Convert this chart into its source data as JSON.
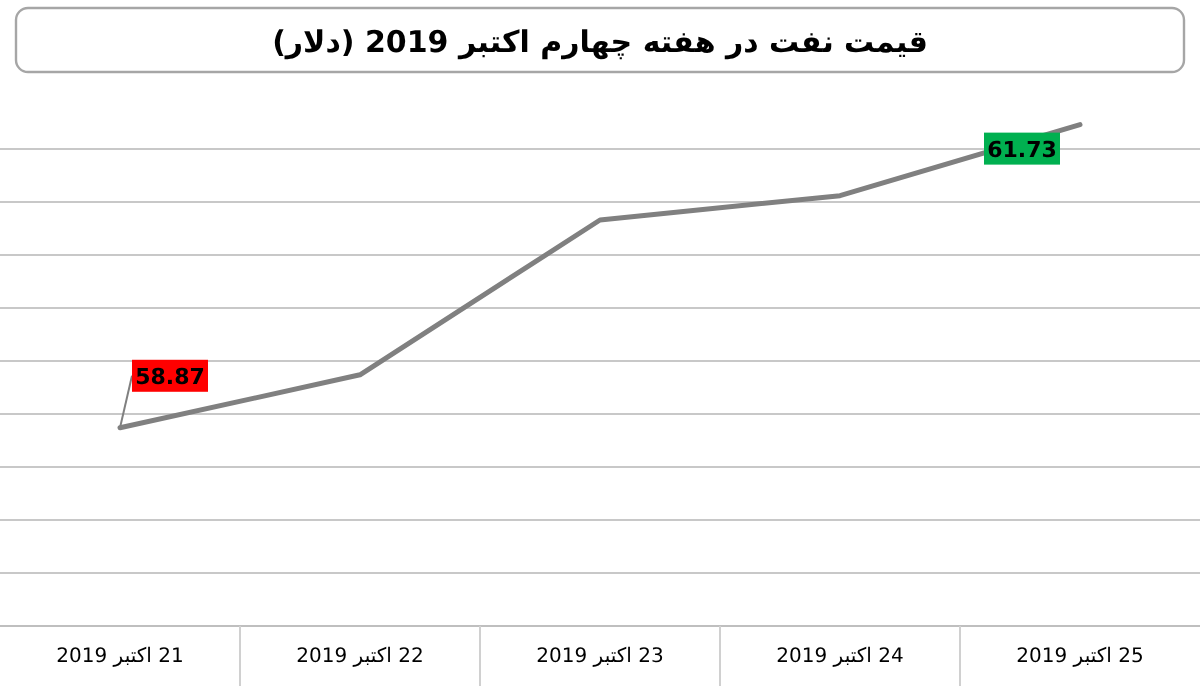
{
  "chart_data": {
    "type": "line",
    "title": "قیمت نفت در هفته چهارم اکتبر 2019 (دلار)",
    "categories": [
      "21 اکتبر 2019",
      "22 اکتبر 2019",
      "23 اکتبر 2019",
      "24 اکتبر 2019",
      "25 اکتبر 2019"
    ],
    "values": [
      58.87,
      59.37,
      60.83,
      61.06,
      61.73
    ],
    "value_labels": [
      "58.87",
      null,
      null,
      null,
      "61.73"
    ],
    "color": "#808080",
    "yticks": [
      {
        "value": 57.5,
        "label": null
      },
      {
        "value": 58,
        "label": null
      },
      {
        "value": 58.5,
        "label": null
      },
      {
        "value": 59,
        "label": null
      },
      {
        "value": 59.5,
        "label": null
      },
      {
        "value": 60,
        "label": null
      },
      {
        "value": 60.5,
        "label": null
      },
      {
        "value": 61,
        "label": null
      },
      {
        "value": 61.5,
        "label": null
      }
    ],
    "grid": "y",
    "tick_labels": "x",
    "marker": "none"
  }
}
